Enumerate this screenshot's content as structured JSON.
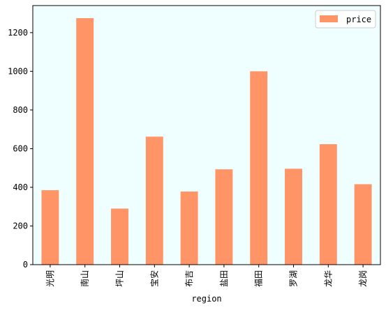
{
  "chart_data": {
    "type": "bar",
    "xlabel": "region",
    "ylabel": "",
    "categories": [
      "光明",
      "南山",
      "坪山",
      "宝安",
      "布吉",
      "盐田",
      "福田",
      "罗湖",
      "龙华",
      "龙岗"
    ],
    "series": [
      {
        "name": "price",
        "values": [
          385,
          1275,
          290,
          662,
          378,
          493,
          1000,
          496,
          623,
          416
        ]
      }
    ],
    "ylim": [
      0,
      1340
    ],
    "yticks": [
      0,
      200,
      400,
      600,
      800,
      1000,
      1200
    ],
    "grid": false,
    "legend_position": "top-right",
    "colors": {
      "bar": "#ff9466",
      "plot_background": "#efffff",
      "axis": "#000000"
    }
  }
}
